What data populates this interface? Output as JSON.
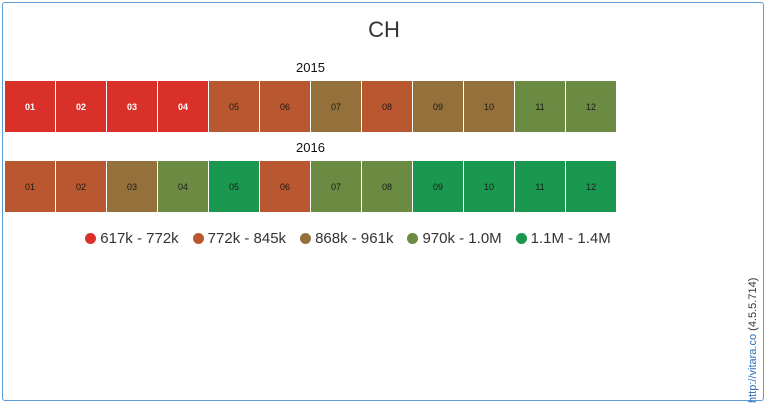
{
  "chart_data": {
    "type": "heatmap",
    "title": "CH",
    "years": [
      "2015",
      "2016"
    ],
    "months": [
      "01",
      "02",
      "03",
      "04",
      "05",
      "06",
      "07",
      "08",
      "09",
      "10",
      "11",
      "12"
    ],
    "legend": {
      "placement": "bottom",
      "bins": [
        {
          "label": "617k - 772k",
          "color": "#d9302a"
        },
        {
          "label": "772k - 845k",
          "color": "#b85730"
        },
        {
          "label": "868k - 961k",
          "color": "#94713a"
        },
        {
          "label": "970k - 1.0M",
          "color": "#6b8a42"
        },
        {
          "label": "1.1M - 1.4M",
          "color": "#1a9850"
        }
      ]
    },
    "bins_by_year": [
      [
        0,
        0,
        0,
        0,
        1,
        1,
        2,
        1,
        2,
        2,
        3,
        3
      ],
      [
        1,
        1,
        2,
        3,
        4,
        1,
        3,
        3,
        4,
        4,
        4,
        4
      ]
    ]
  },
  "credit": {
    "link": "http://vitara.co",
    "version": "(4.5.5.714)"
  }
}
